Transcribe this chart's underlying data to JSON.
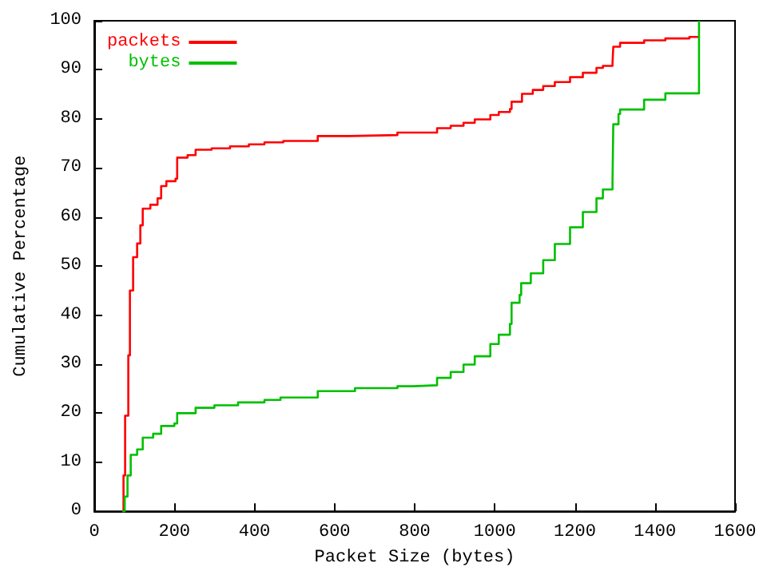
{
  "chart_data": {
    "type": "step",
    "xlabel": "Packet Size (bytes)",
    "ylabel": "Cumulative Percentage",
    "xlim": [
      0,
      1600
    ],
    "xticks": [
      0,
      200,
      400,
      600,
      800,
      1000,
      1200,
      1400,
      1600
    ],
    "ylim": [
      0,
      100
    ],
    "yticks": [
      0,
      10,
      20,
      30,
      40,
      50,
      60,
      70,
      80,
      90,
      100
    ],
    "grid": false,
    "legend": "top left",
    "line_style": "solid",
    "marker": "none",
    "series": [
      {
        "name": "packets",
        "color": "#ff0000",
        "x": [
          70,
          73,
          77,
          85,
          89,
          97,
          107,
          115,
          121,
          140,
          158,
          167,
          180,
          203,
          207,
          233,
          253,
          293,
          339,
          386,
          425,
          472,
          558,
          637,
          757,
          856,
          890,
          922,
          950,
          989,
          1010,
          1038,
          1042,
          1068,
          1095,
          1121,
          1150,
          1188,
          1220,
          1254,
          1270,
          1294,
          1296,
          1313,
          1373,
          1426,
          1486,
          1510
        ],
        "values": [
          0,
          7.3,
          19.5,
          31.8,
          45,
          51.8,
          54.6,
          58.3,
          61.7,
          62.5,
          63.8,
          66.3,
          67.3,
          67.8,
          72.1,
          72.6,
          73.7,
          74,
          74.4,
          74.8,
          75.2,
          75.5,
          76.5,
          76.7,
          77.2,
          78.1,
          78.6,
          79.2,
          79.9,
          80.8,
          81.4,
          82,
          83.5,
          85.1,
          85.9,
          86.7,
          87.5,
          88.5,
          89.4,
          90.4,
          90.8,
          91.3,
          94.7,
          95.5,
          96,
          96.4,
          96.7,
          96.7
        ]
      },
      {
        "name": "bytes",
        "color": "#00c000",
        "x": [
          70,
          76,
          83,
          91,
          107,
          121,
          147,
          167,
          200,
          207,
          253,
          300,
          359,
          425,
          465,
          558,
          651,
          757,
          797,
          856,
          890,
          922,
          950,
          989,
          1010,
          1038,
          1042,
          1062,
          1066,
          1090,
          1121,
          1150,
          1188,
          1220,
          1254,
          1270,
          1294,
          1296,
          1309,
          1313,
          1373,
          1426,
          1510,
          1510
        ],
        "values": [
          0,
          3,
          7.3,
          11.5,
          12.6,
          15,
          15.8,
          17.4,
          17.9,
          20,
          21.1,
          21.6,
          22.2,
          22.7,
          23.2,
          24.5,
          25.1,
          25.5,
          25.7,
          27.2,
          28.4,
          29.9,
          31.6,
          34.1,
          36,
          38.2,
          42.5,
          44.1,
          46.5,
          48.5,
          51.2,
          54.5,
          57.9,
          61,
          63.8,
          65.6,
          67.2,
          78.9,
          81,
          81.9,
          83.9,
          85.2,
          86.6,
          100
        ]
      }
    ]
  }
}
